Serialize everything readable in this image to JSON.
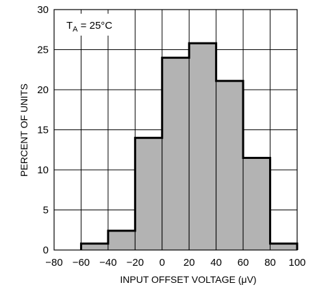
{
  "chart_data": {
    "type": "bar",
    "xlabel": "INPUT OFFSET VOLTAGE (μV)",
    "ylabel": "PERCENT OF UNITS",
    "annotation": {
      "symbol": "T",
      "subscript": "A",
      "rest": " = 25°C"
    },
    "xlim": [
      -80,
      100
    ],
    "ylim": [
      0,
      30
    ],
    "x_ticks": [
      "−80",
      "−60",
      "−40",
      "−20",
      "0",
      "20",
      "40",
      "60",
      "80",
      "100"
    ],
    "y_ticks": [
      "0",
      "5",
      "10",
      "15",
      "20",
      "25",
      "30"
    ],
    "grid": true,
    "bin_edges": [
      -60,
      -40,
      -20,
      0,
      20,
      40,
      60,
      80,
      100
    ],
    "values": [
      0.8,
      2.4,
      14,
      24,
      25.8,
      21.1,
      11.5,
      0.8
    ],
    "bar_fill": "#b3b3b3",
    "outline_color": "#000000"
  }
}
